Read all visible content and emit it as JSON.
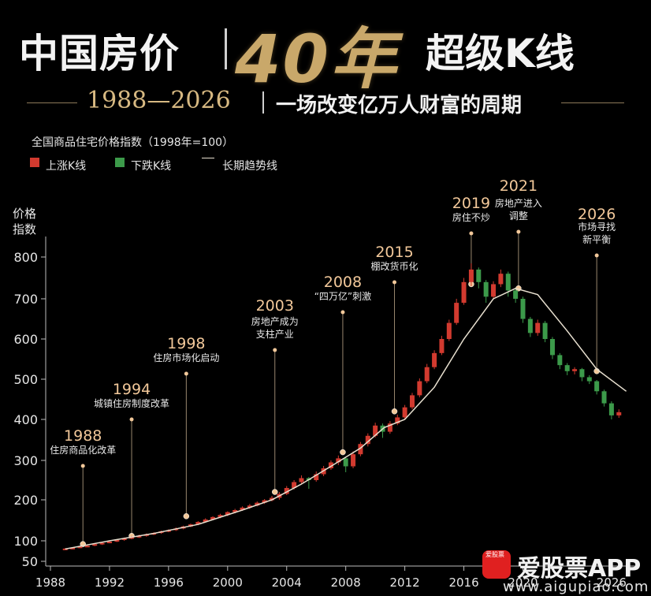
{
  "title": {
    "left": "中国房价",
    "big": "40年",
    "right": "超级K线"
  },
  "subtitle": {
    "years": "1988—2026",
    "text": "一场改变亿万人财富的周期"
  },
  "index_label": "全国商品住宅价格指数（1998年=100）",
  "legend": {
    "up": "上涨K线",
    "down": "下跌K线",
    "trend": "长期趋势线"
  },
  "colors": {
    "up": "#d23a2f",
    "down": "#3c9a4a",
    "trend": "#e8e0d0",
    "accent": "#d7b982",
    "annotation": "#f2c89a"
  },
  "watermark": {
    "logo_text": "爱股票",
    "name": "爱股票APP",
    "url": "www.aigupiao.com"
  },
  "chart_data": {
    "type": "candlestick",
    "ylabel": "价格\n指数",
    "ylim": [
      50,
      850
    ],
    "yticks": [
      50,
      100,
      200,
      300,
      400,
      500,
      600,
      700,
      800
    ],
    "xlim": [
      1988,
      2027.5
    ],
    "xticks": [
      1988,
      1992,
      1996,
      2000,
      2004,
      2008,
      2012,
      2016,
      2020,
      2026
    ],
    "grid": false,
    "legend_position": "top-left",
    "trend": [
      [
        1989,
        80
      ],
      [
        1992,
        100
      ],
      [
        1995,
        118
      ],
      [
        1998,
        140
      ],
      [
        2001,
        175
      ],
      [
        2003,
        200
      ],
      [
        2005,
        240
      ],
      [
        2007,
        285
      ],
      [
        2009,
        330
      ],
      [
        2010.6,
        380
      ],
      [
        2012,
        400
      ],
      [
        2014,
        480
      ],
      [
        2016,
        600
      ],
      [
        2018,
        700
      ],
      [
        2019.5,
        725
      ],
      [
        2021,
        710
      ],
      [
        2023,
        620
      ],
      [
        2025,
        525
      ],
      [
        2027,
        470
      ]
    ],
    "candles": [
      [
        1989.0,
        80,
        81,
        82,
        79
      ],
      [
        1989.5,
        81,
        83,
        84,
        80
      ],
      [
        1990.0,
        83,
        86,
        87,
        82
      ],
      [
        1990.5,
        86,
        88,
        90,
        85
      ],
      [
        1991.0,
        88,
        92,
        93,
        87
      ],
      [
        1991.5,
        92,
        95,
        96,
        90
      ],
      [
        1992.0,
        95,
        98,
        100,
        94
      ],
      [
        1992.5,
        98,
        102,
        104,
        97
      ],
      [
        1993.0,
        102,
        106,
        108,
        100
      ],
      [
        1993.5,
        106,
        109,
        112,
        104
      ],
      [
        1994.0,
        109,
        112,
        115,
        107
      ],
      [
        1994.5,
        112,
        116,
        118,
        110
      ],
      [
        1995.0,
        116,
        119,
        121,
        114
      ],
      [
        1995.5,
        119,
        123,
        125,
        117
      ],
      [
        1996.0,
        123,
        126,
        128,
        121
      ],
      [
        1996.5,
        126,
        130,
        133,
        124
      ],
      [
        1997.0,
        130,
        135,
        137,
        128
      ],
      [
        1997.5,
        135,
        140,
        142,
        133
      ],
      [
        1998.0,
        140,
        146,
        148,
        138
      ],
      [
        1998.5,
        146,
        152,
        155,
        144
      ],
      [
        1999.0,
        152,
        158,
        160,
        150
      ],
      [
        1999.5,
        158,
        163,
        166,
        155
      ],
      [
        2000.0,
        163,
        170,
        172,
        160
      ],
      [
        2000.5,
        170,
        175,
        178,
        167
      ],
      [
        2001.0,
        175,
        181,
        184,
        173
      ],
      [
        2001.5,
        181,
        186,
        190,
        178
      ],
      [
        2002.0,
        186,
        193,
        196,
        184
      ],
      [
        2002.5,
        193,
        199,
        202,
        190
      ],
      [
        2003.0,
        199,
        205,
        210,
        196
      ],
      [
        2003.5,
        205,
        215,
        220,
        200
      ],
      [
        2004.0,
        215,
        230,
        235,
        212
      ],
      [
        2004.5,
        230,
        245,
        250,
        226
      ],
      [
        2005.0,
        245,
        255,
        262,
        240
      ],
      [
        2005.5,
        255,
        250,
        258,
        228
      ],
      [
        2006.0,
        250,
        265,
        272,
        246
      ],
      [
        2006.5,
        265,
        280,
        286,
        260
      ],
      [
        2007.0,
        280,
        295,
        300,
        276
      ],
      [
        2007.5,
        295,
        305,
        312,
        288
      ],
      [
        2008.0,
        305,
        285,
        308,
        270
      ],
      [
        2008.5,
        285,
        315,
        322,
        280
      ],
      [
        2009.0,
        315,
        340,
        345,
        310
      ],
      [
        2009.5,
        340,
        360,
        366,
        334
      ],
      [
        2010.0,
        360,
        385,
        392,
        356
      ],
      [
        2010.5,
        385,
        370,
        390,
        355
      ],
      [
        2011.0,
        370,
        390,
        396,
        365
      ],
      [
        2011.5,
        390,
        405,
        412,
        386
      ],
      [
        2012.0,
        405,
        430,
        436,
        400
      ],
      [
        2012.5,
        430,
        460,
        466,
        425
      ],
      [
        2013.0,
        460,
        495,
        502,
        455
      ],
      [
        2013.5,
        495,
        530,
        538,
        490
      ],
      [
        2014.0,
        530,
        565,
        572,
        525
      ],
      [
        2014.5,
        565,
        600,
        608,
        560
      ],
      [
        2015.0,
        600,
        640,
        648,
        595
      ],
      [
        2015.5,
        640,
        690,
        700,
        635
      ],
      [
        2016.0,
        690,
        740,
        750,
        685
      ],
      [
        2016.5,
        740,
        770,
        785,
        730
      ],
      [
        2017.0,
        770,
        740,
        775,
        725
      ],
      [
        2017.5,
        740,
        705,
        745,
        690
      ],
      [
        2018.0,
        705,
        735,
        742,
        698
      ],
      [
        2018.5,
        735,
        760,
        770,
        728
      ],
      [
        2019.0,
        760,
        720,
        765,
        705
      ],
      [
        2019.5,
        720,
        700,
        725,
        690
      ],
      [
        2020.0,
        700,
        650,
        705,
        640
      ],
      [
        2020.5,
        650,
        615,
        655,
        605
      ],
      [
        2021.0,
        615,
        640,
        648,
        608
      ],
      [
        2021.5,
        640,
        600,
        645,
        592
      ],
      [
        2022.0,
        600,
        560,
        605,
        550
      ],
      [
        2022.5,
        560,
        535,
        565,
        525
      ],
      [
        2023.0,
        535,
        520,
        540,
        510
      ],
      [
        2023.5,
        520,
        525,
        530,
        512
      ],
      [
        2024.0,
        525,
        505,
        528,
        495
      ],
      [
        2024.5,
        505,
        495,
        510,
        488
      ],
      [
        2025.0,
        495,
        470,
        498,
        462
      ],
      [
        2025.5,
        470,
        440,
        474,
        432
      ],
      [
        2026.0,
        440,
        410,
        445,
        400
      ],
      [
        2026.5,
        410,
        418,
        425,
        404
      ]
    ],
    "annotations": [
      {
        "year": "1988",
        "text": "住房商品化改革",
        "x": 1990.2,
        "y": 92
      },
      {
        "year": "1994",
        "text": "城镇住房制度改革",
        "x": 1993.5,
        "y": 112
      },
      {
        "year": "1998",
        "text": "住房市场化启动",
        "x": 1997.2,
        "y": 160
      },
      {
        "year": "2003",
        "text": "房地产成为\n支柱产业",
        "x": 2003.2,
        "y": 220
      },
      {
        "year": "2008",
        "text": "“四万亿”刺激",
        "x": 2007.8,
        "y": 320
      },
      {
        "year": "2015",
        "text": "棚改货币化",
        "x": 2011.3,
        "y": 420
      },
      {
        "year": "2019",
        "text": "房住不炒",
        "x": 2016.5,
        "y": 735
      },
      {
        "year": "2021",
        "text": "房地产进入\n调整",
        "x": 2019.7,
        "y": 725
      },
      {
        "year": "2026",
        "text": "市场寻找\n新平衡",
        "x": 2025.0,
        "y": 520
      }
    ]
  }
}
